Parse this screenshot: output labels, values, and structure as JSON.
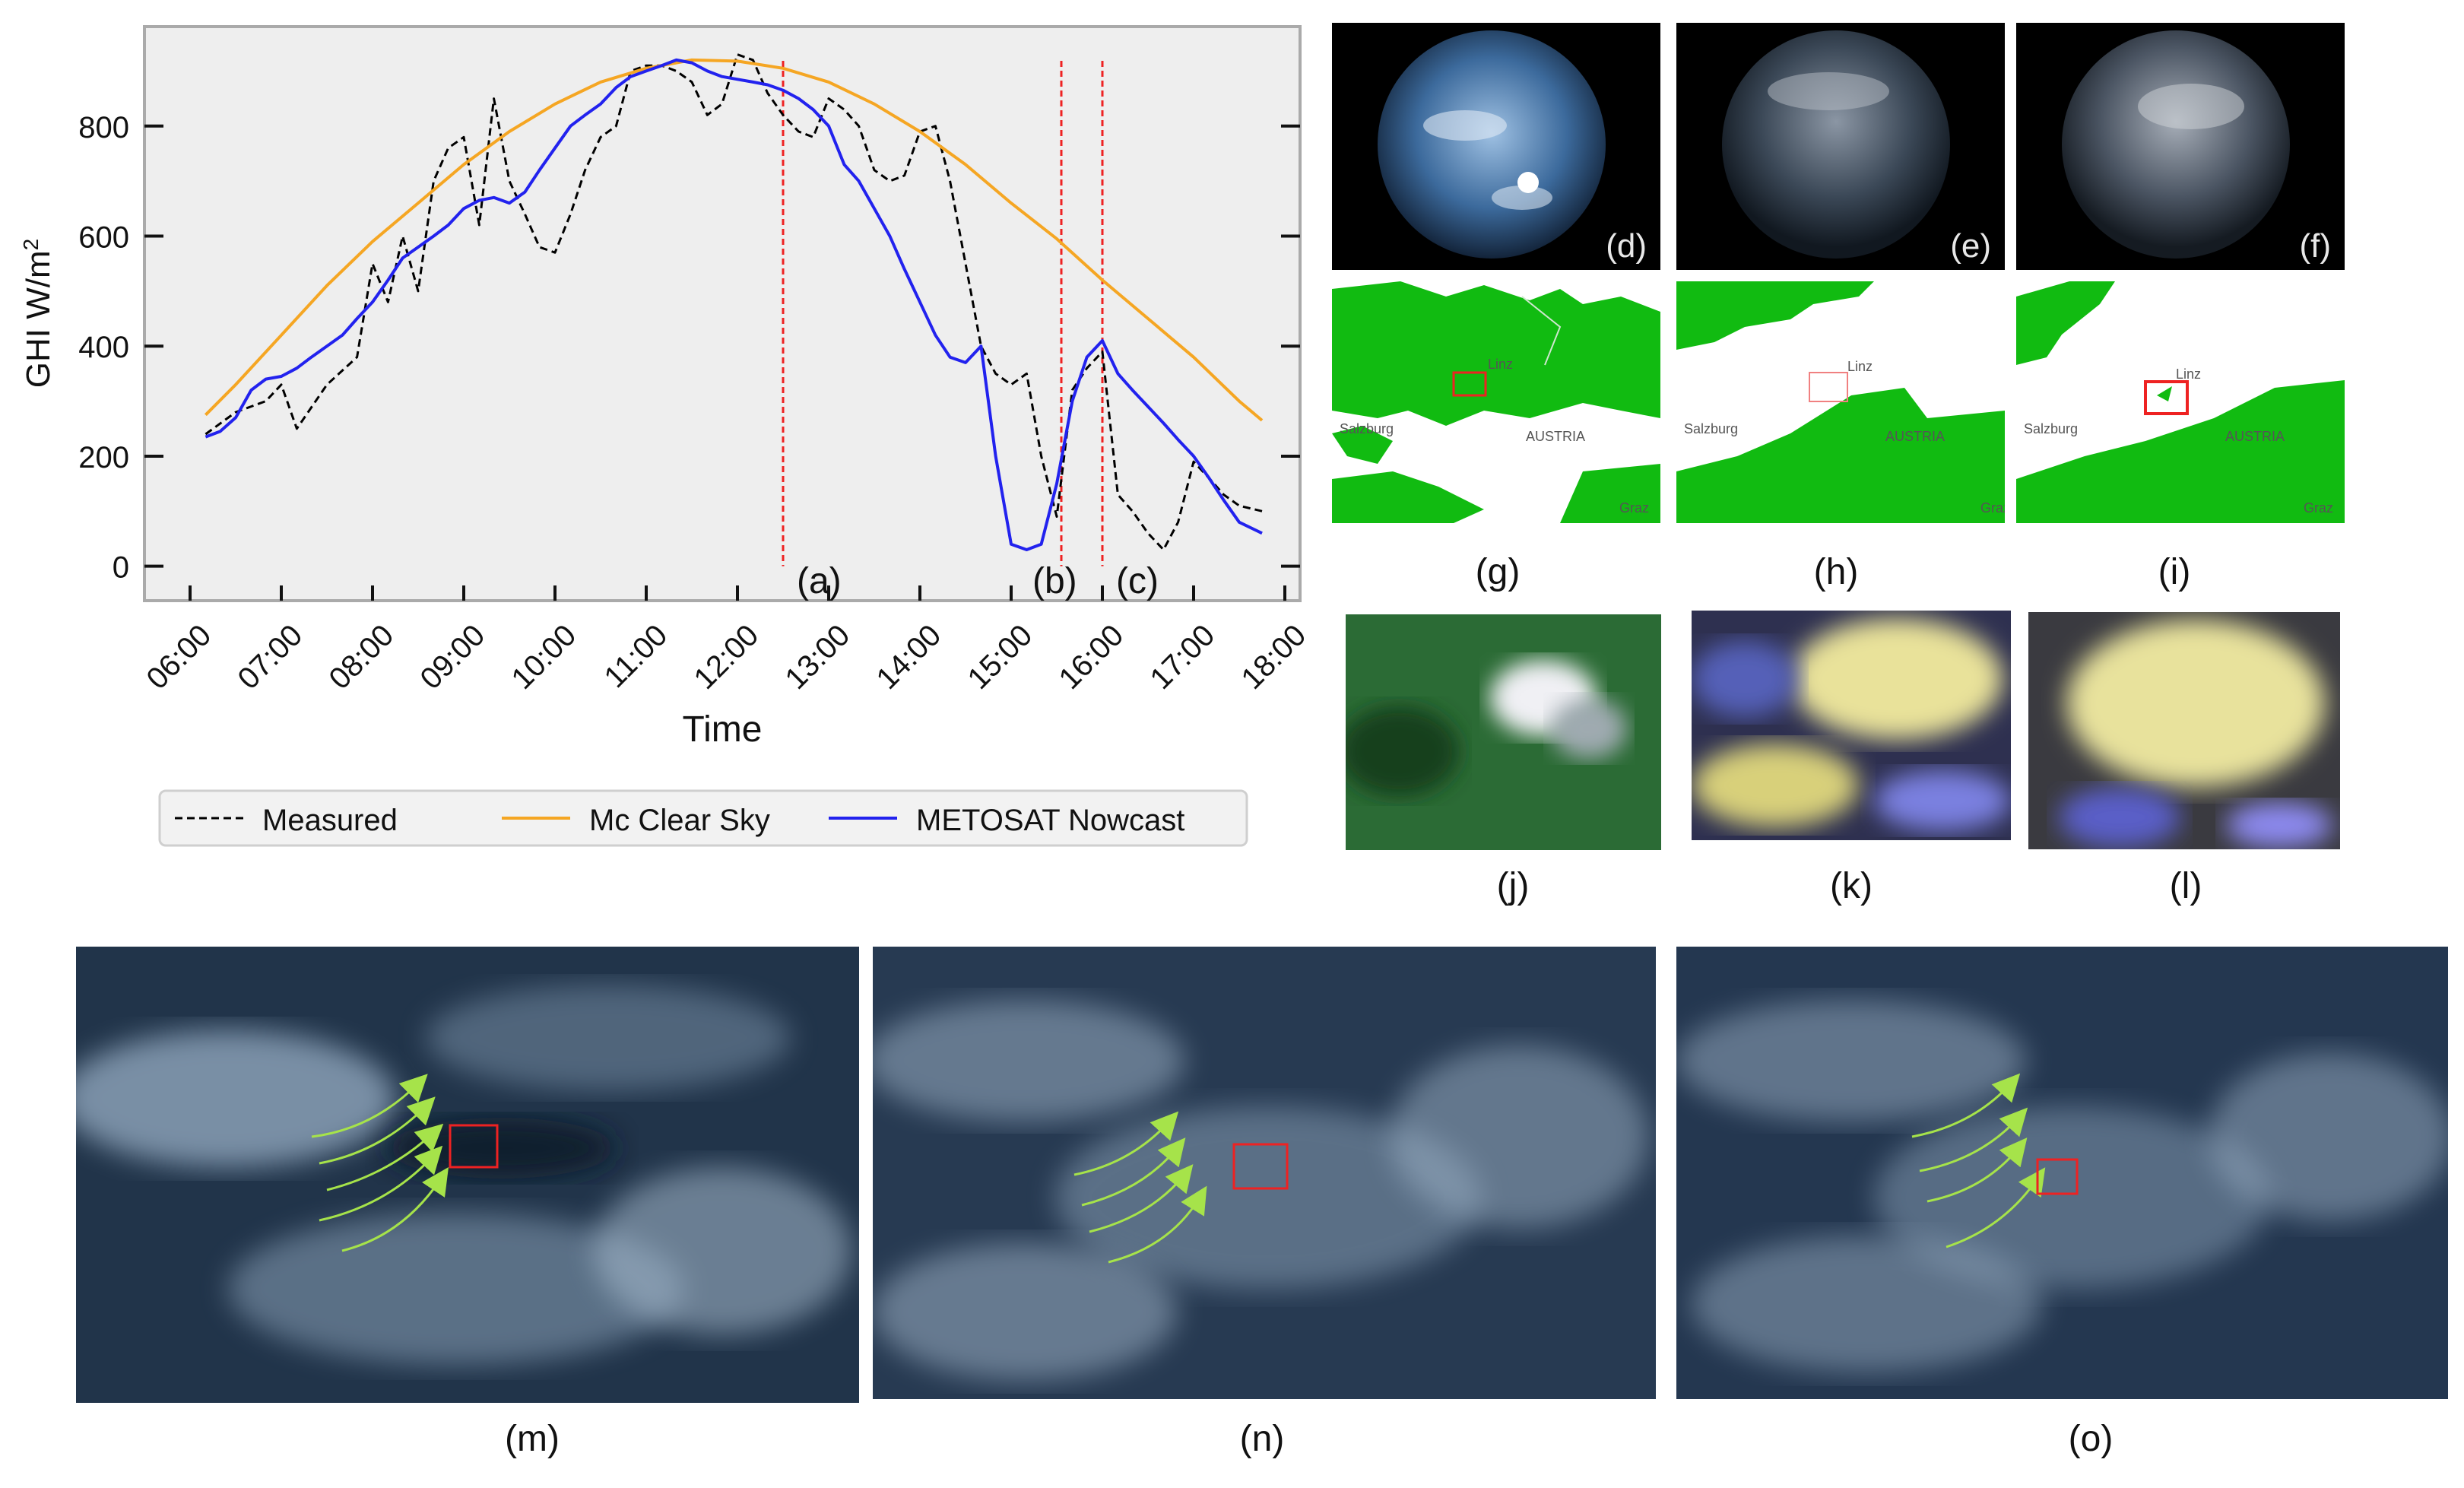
{
  "colors": {
    "measured": "#000000",
    "clear_sky": "#f5a623",
    "nowcast": "#2222ee",
    "markers": "#ee2222",
    "plot_bg": "#eeeeee"
  },
  "chart_data": {
    "type": "line",
    "xlabel": "Time",
    "ylabel": "GHI W/m²",
    "x_ticks": [
      "06:00",
      "07:00",
      "08:00",
      "09:00",
      "10:00",
      "11:00",
      "12:00",
      "13:00",
      "14:00",
      "15:00",
      "16:00",
      "17:00",
      "18:00"
    ],
    "y_ticks": [
      0,
      200,
      400,
      600,
      800
    ],
    "xlim": [
      6.0,
      18.0
    ],
    "ylim": [
      -35,
      960
    ],
    "grid": false,
    "legend_position": "bottom",
    "series": [
      {
        "name": "Measured",
        "style": "dashed",
        "x": [
          6.17,
          6.5,
          6.83,
          7.0,
          7.17,
          7.5,
          7.83,
          8.0,
          8.17,
          8.33,
          8.5,
          8.67,
          8.83,
          9.0,
          9.17,
          9.33,
          9.5,
          9.67,
          9.83,
          10.0,
          10.17,
          10.33,
          10.5,
          10.67,
          10.83,
          11.0,
          11.17,
          11.33,
          11.5,
          11.67,
          11.83,
          12.0,
          12.17,
          12.33,
          12.5,
          12.67,
          12.83,
          13.0,
          13.17,
          13.33,
          13.5,
          13.67,
          13.83,
          14.0,
          14.17,
          14.33,
          14.5,
          14.67,
          14.83,
          15.0,
          15.17,
          15.33,
          15.5,
          15.67,
          15.83,
          16.0,
          16.17,
          16.33,
          16.5,
          16.67,
          16.83,
          17.0,
          17.17,
          17.33,
          17.5,
          17.75
        ],
        "y": [
          240,
          280,
          300,
          330,
          250,
          330,
          380,
          550,
          480,
          600,
          500,
          700,
          760,
          780,
          620,
          850,
          700,
          640,
          580,
          570,
          640,
          720,
          780,
          800,
          900,
          910,
          910,
          900,
          880,
          820,
          840,
          930,
          920,
          860,
          820,
          790,
          780,
          850,
          830,
          800,
          720,
          700,
          710,
          790,
          800,
          700,
          550,
          400,
          350,
          330,
          350,
          200,
          90,
          320,
          360,
          390,
          130,
          100,
          60,
          30,
          80,
          190,
          160,
          130,
          110,
          100
        ]
      },
      {
        "name": "Mc Clear Sky",
        "style": "solid",
        "x": [
          6.17,
          6.5,
          7.0,
          7.5,
          8.0,
          8.5,
          9.0,
          9.5,
          10.0,
          10.5,
          11.0,
          11.5,
          12.0,
          12.5,
          13.0,
          13.5,
          14.0,
          14.5,
          15.0,
          15.5,
          16.0,
          16.5,
          17.0,
          17.5,
          17.75
        ],
        "y": [
          275,
          330,
          420,
          510,
          590,
          660,
          730,
          790,
          840,
          880,
          905,
          920,
          918,
          905,
          880,
          840,
          790,
          730,
          660,
          595,
          520,
          450,
          380,
          300,
          265
        ]
      },
      {
        "name": "METOSAT Nowcast",
        "style": "solid",
        "x": [
          6.17,
          6.33,
          6.5,
          6.67,
          6.83,
          7.0,
          7.17,
          7.33,
          7.5,
          7.67,
          7.83,
          8.0,
          8.17,
          8.33,
          8.5,
          8.67,
          8.83,
          9.0,
          9.17,
          9.33,
          9.5,
          9.67,
          9.83,
          10.0,
          10.17,
          10.33,
          10.5,
          10.67,
          10.83,
          11.0,
          11.17,
          11.33,
          11.5,
          11.67,
          11.83,
          12.0,
          12.17,
          12.33,
          12.5,
          12.67,
          12.83,
          13.0,
          13.17,
          13.33,
          13.5,
          13.67,
          13.83,
          14.0,
          14.17,
          14.33,
          14.5,
          14.67,
          14.83,
          15.0,
          15.17,
          15.33,
          15.5,
          15.67,
          15.83,
          16.0,
          16.17,
          16.33,
          16.5,
          16.67,
          16.83,
          17.0,
          17.17,
          17.33,
          17.5,
          17.75
        ],
        "y": [
          235,
          245,
          270,
          320,
          340,
          345,
          360,
          380,
          400,
          420,
          450,
          480,
          520,
          560,
          580,
          600,
          620,
          650,
          665,
          670,
          660,
          680,
          720,
          760,
          800,
          820,
          840,
          870,
          890,
          900,
          910,
          920,
          915,
          900,
          890,
          885,
          880,
          875,
          865,
          850,
          830,
          800,
          730,
          700,
          650,
          600,
          540,
          480,
          420,
          380,
          370,
          400,
          200,
          40,
          30,
          40,
          150,
          300,
          380,
          410,
          350,
          320,
          290,
          260,
          230,
          200,
          160,
          120,
          80,
          60
        ]
      }
    ],
    "annotations": [
      {
        "label": "(a)",
        "x": 12.5
      },
      {
        "label": "(b)",
        "x": 15.55
      },
      {
        "label": "(c)",
        "x": 16.0
      }
    ]
  },
  "legend": [
    "Measured",
    "Mc Clear Sky",
    "METOSAT Nowcast"
  ],
  "panels": {
    "sky": [
      {
        "tag": "(d)"
      },
      {
        "tag": "(e)"
      },
      {
        "tag": "(f)"
      }
    ],
    "maps": [
      {
        "caption": "(g)"
      },
      {
        "caption": "(h)"
      },
      {
        "caption": "(i)"
      }
    ],
    "zooms": [
      {
        "caption": "(j)"
      },
      {
        "caption": "(k)"
      },
      {
        "caption": "(l)"
      }
    ],
    "satellite": [
      {
        "caption": "(m)"
      },
      {
        "caption": "(n)"
      },
      {
        "caption": "(o)"
      }
    ]
  },
  "map_labels": {
    "linz": "Linz",
    "salzburg": "Salzburg",
    "austria": "AUSTRIA",
    "graz": "Graz"
  }
}
